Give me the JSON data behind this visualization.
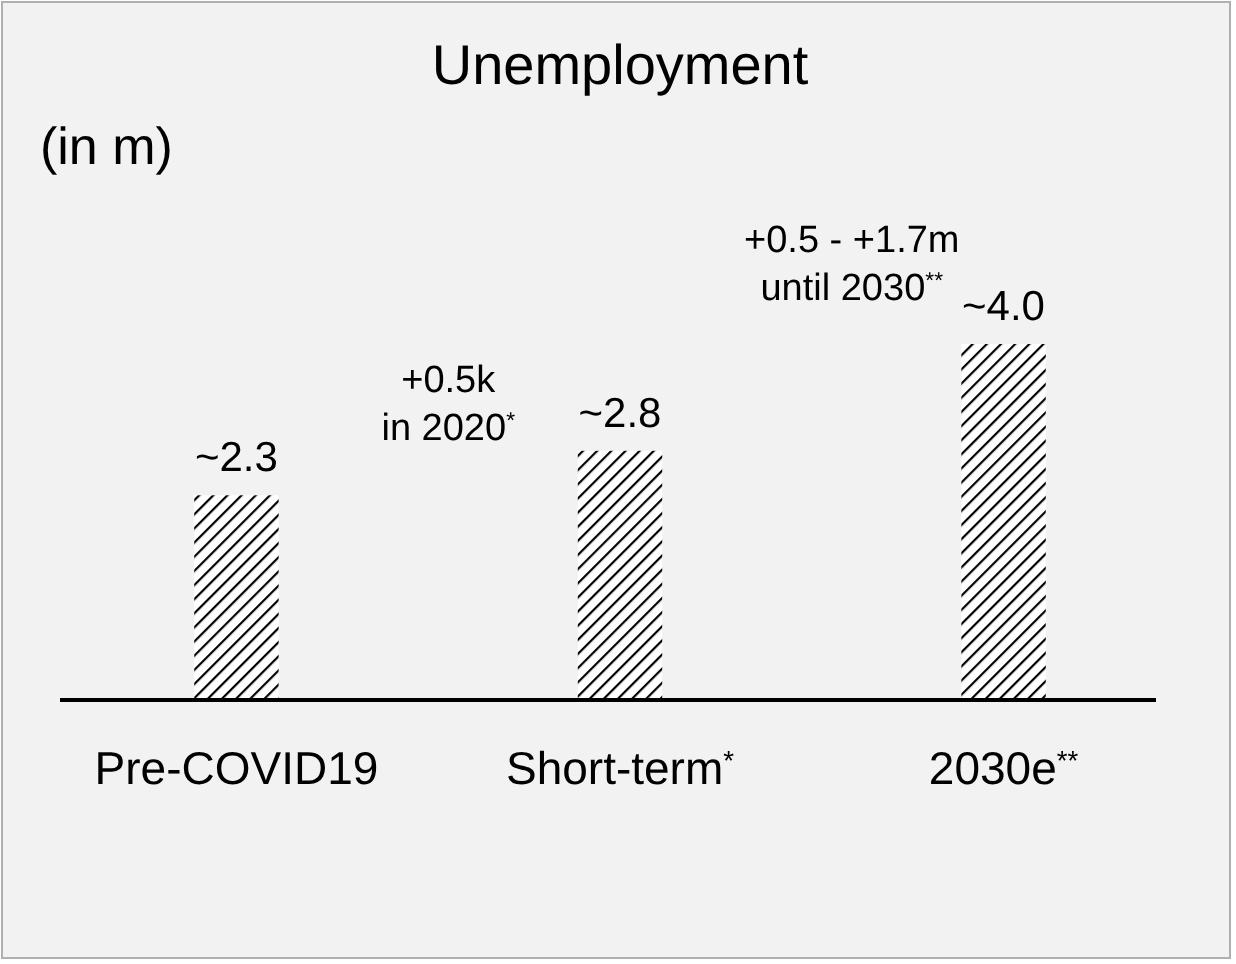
{
  "chart_data": {
    "type": "bar",
    "title": "Unemployment",
    "ylabel": "(in m)",
    "categories": [
      "Pre-COVID19",
      "Short-term$^{*}$",
      "2030e$^{**}$"
    ],
    "values": [
      2.3,
      2.8,
      4.0
    ],
    "value_labels": [
      "~2.3",
      "~2.8",
      "~4.0"
    ],
    "color": "#000000",
    "annotations": [
      "+0.5k\nin 2020$^{*}$",
      "+0.5 - +1.7m\nuntil 2030$^{**}$"
    ]
  }
}
